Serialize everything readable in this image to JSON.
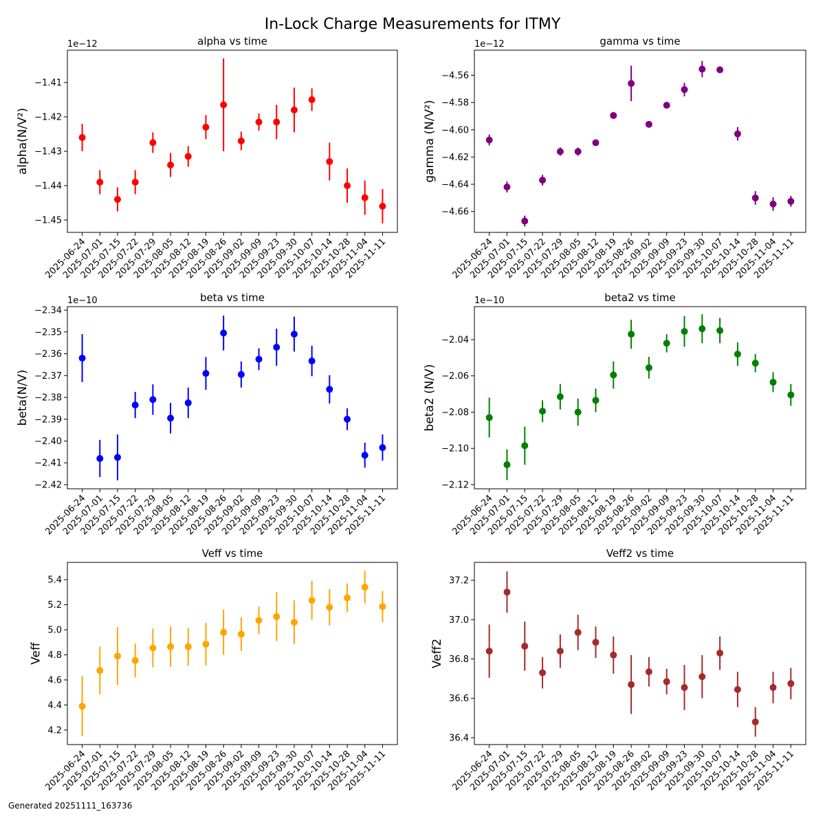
{
  "title": "In-Lock Charge Measurements for ITMY",
  "footer": "Generated 20251111_163736",
  "chart_data": [
    {
      "type": "errorbar",
      "title": "alpha vs time",
      "ylabel": "alpha(N/V²)",
      "offset_text": "1e−12",
      "color": "#ff0000",
      "categories": [
        "2025-06-24",
        "2025-07-01",
        "2025-07-15",
        "2025-07-22",
        "2025-07-29",
        "2025-08-05",
        "2025-08-12",
        "2025-08-19",
        "2025-08-26",
        "2025-09-02",
        "2025-09-09",
        "2025-09-23",
        "2025-09-30",
        "2025-10-07",
        "2025-10-14",
        "2025-10-28",
        "2025-11-04",
        "2025-11-11"
      ],
      "values": [
        -1.426,
        -1.439,
        -1.444,
        -1.439,
        -1.4275,
        -1.434,
        -1.4315,
        -1.423,
        -1.4165,
        -1.427,
        -1.4215,
        -1.4215,
        -1.418,
        -1.415,
        -1.433,
        -1.44,
        -1.4435,
        -1.446
      ],
      "errors": [
        0.004,
        0.0035,
        0.0035,
        0.0035,
        0.003,
        0.0035,
        0.003,
        0.0035,
        0.0135,
        0.0027,
        0.0025,
        0.005,
        0.0065,
        0.0033,
        0.0055,
        0.005,
        0.005,
        0.005
      ],
      "ylim": [
        -1.4536,
        -1.4006
      ],
      "yticks": [
        {
          "value": -1.45,
          "label": "−1.45"
        },
        {
          "value": -1.44,
          "label": "−1.44"
        },
        {
          "value": -1.43,
          "label": "−1.43"
        },
        {
          "value": -1.42,
          "label": "−1.42"
        },
        {
          "value": -1.41,
          "label": "−1.41"
        }
      ]
    },
    {
      "type": "errorbar",
      "title": "gamma vs time",
      "ylabel": "gamma (N/V²)",
      "offset_text": "1e−12",
      "color": "#800080",
      "categories": [
        "2025-06-24",
        "2025-07-01",
        "2025-07-15",
        "2025-07-22",
        "2025-07-29",
        "2025-08-05",
        "2025-08-12",
        "2025-08-19",
        "2025-08-26",
        "2025-09-02",
        "2025-09-09",
        "2025-09-23",
        "2025-09-30",
        "2025-10-07",
        "2025-10-14",
        "2025-10-28",
        "2025-11-04",
        "2025-11-11"
      ],
      "values": [
        -4.6075,
        -4.642,
        -4.667,
        -4.637,
        -4.616,
        -4.616,
        -4.6095,
        -4.5895,
        -4.566,
        -4.596,
        -4.582,
        -4.5705,
        -4.5555,
        -4.556,
        -4.603,
        -4.65,
        -4.6545,
        -4.6525
      ],
      "errors": [
        0.004,
        0.004,
        0.004,
        0.004,
        0.003,
        0.003,
        0.002,
        0.002,
        0.013,
        0.002,
        0.002,
        0.005,
        0.006,
        0.002,
        0.005,
        0.005,
        0.005,
        0.004
      ],
      "ylim": [
        -4.6753,
        -4.5416
      ],
      "yticks": [
        {
          "value": -4.66,
          "label": "−4.66"
        },
        {
          "value": -4.64,
          "label": "−4.64"
        },
        {
          "value": -4.62,
          "label": "−4.62"
        },
        {
          "value": -4.6,
          "label": "−4.60"
        },
        {
          "value": -4.58,
          "label": "−4.58"
        },
        {
          "value": -4.56,
          "label": "−4.56"
        }
      ]
    },
    {
      "type": "errorbar",
      "title": "beta vs time",
      "ylabel": "beta(N/V)",
      "offset_text": "1e−10",
      "color": "#0000ff",
      "categories": [
        "2025-06-24",
        "2025-07-01",
        "2025-07-15",
        "2025-07-22",
        "2025-07-29",
        "2025-08-05",
        "2025-08-12",
        "2025-08-19",
        "2025-08-26",
        "2025-09-02",
        "2025-09-09",
        "2025-09-23",
        "2025-09-30",
        "2025-10-07",
        "2025-10-14",
        "2025-10-28",
        "2025-11-04",
        "2025-11-11"
      ],
      "values": [
        -2.362,
        -2.408,
        -2.4075,
        -2.3835,
        -2.381,
        -2.3895,
        -2.3825,
        -2.369,
        -2.3505,
        -2.3695,
        -2.3625,
        -2.357,
        -2.351,
        -2.3633,
        -2.3763,
        -2.39,
        -2.4065,
        -2.403
      ],
      "errors": [
        0.011,
        0.0085,
        0.0105,
        0.006,
        0.007,
        0.007,
        0.007,
        0.0075,
        0.008,
        0.006,
        0.005,
        0.0085,
        0.008,
        0.007,
        0.0065,
        0.005,
        0.0057,
        0.006
      ],
      "ylim": [
        -2.4219,
        -2.3384
      ],
      "yticks": [
        {
          "value": -2.42,
          "label": "−2.42"
        },
        {
          "value": -2.41,
          "label": "−2.41"
        },
        {
          "value": -2.4,
          "label": "−2.40"
        },
        {
          "value": -2.39,
          "label": "−2.39"
        },
        {
          "value": -2.38,
          "label": "−2.38"
        },
        {
          "value": -2.37,
          "label": "−2.37"
        },
        {
          "value": -2.36,
          "label": "−2.36"
        },
        {
          "value": -2.35,
          "label": "−2.35"
        },
        {
          "value": -2.34,
          "label": "−2.34"
        }
      ]
    },
    {
      "type": "errorbar",
      "title": "beta2 vs time",
      "ylabel": "beta2 (N/V)",
      "offset_text": "1e−10",
      "color": "#008000",
      "categories": [
        "2025-06-24",
        "2025-07-01",
        "2025-07-15",
        "2025-07-22",
        "2025-07-29",
        "2025-08-05",
        "2025-08-12",
        "2025-08-19",
        "2025-08-26",
        "2025-09-02",
        "2025-09-09",
        "2025-09-23",
        "2025-09-30",
        "2025-10-07",
        "2025-10-14",
        "2025-10-28",
        "2025-11-04",
        "2025-11-11"
      ],
      "values": [
        -2.083,
        -2.109,
        -2.0985,
        -2.0795,
        -2.0715,
        -2.08,
        -2.0735,
        -2.0595,
        -2.037,
        -2.0555,
        -2.042,
        -2.0355,
        -2.034,
        -2.035,
        -2.048,
        -2.053,
        -2.0635,
        -2.0705
      ],
      "errors": [
        0.011,
        0.0085,
        0.0105,
        0.006,
        0.007,
        0.0075,
        0.0065,
        0.0075,
        0.008,
        0.006,
        0.005,
        0.0085,
        0.008,
        0.007,
        0.0065,
        0.005,
        0.0055,
        0.006
      ],
      "ylim": [
        -2.1223,
        -2.0218
      ],
      "yticks": [
        {
          "value": -2.12,
          "label": "−2.12"
        },
        {
          "value": -2.1,
          "label": "−2.10"
        },
        {
          "value": -2.08,
          "label": "−2.08"
        },
        {
          "value": -2.06,
          "label": "−2.06"
        },
        {
          "value": -2.04,
          "label": "−2.04"
        }
      ]
    },
    {
      "type": "errorbar",
      "title": "Veff vs time",
      "ylabel": "Veff",
      "color": "#ffa500",
      "categories": [
        "2025-06-24",
        "2025-07-01",
        "2025-07-15",
        "2025-07-22",
        "2025-07-29",
        "2025-08-05",
        "2025-08-12",
        "2025-08-19",
        "2025-08-26",
        "2025-09-02",
        "2025-09-09",
        "2025-09-23",
        "2025-09-30",
        "2025-10-07",
        "2025-10-14",
        "2025-10-28",
        "2025-11-04",
        "2025-11-11"
      ],
      "values": [
        4.39,
        4.675,
        4.79,
        4.755,
        4.855,
        4.865,
        4.865,
        4.885,
        4.98,
        4.965,
        5.075,
        5.105,
        5.06,
        5.235,
        5.18,
        5.255,
        5.34,
        5.185
      ],
      "errors": [
        0.24,
        0.19,
        0.23,
        0.135,
        0.155,
        0.16,
        0.15,
        0.17,
        0.18,
        0.135,
        0.11,
        0.195,
        0.175,
        0.155,
        0.145,
        0.115,
        0.13,
        0.125
      ],
      "ylim": [
        4.084,
        5.538
      ],
      "yticks": [
        {
          "value": 4.2,
          "label": "4.2"
        },
        {
          "value": 4.4,
          "label": "4.4"
        },
        {
          "value": 4.6,
          "label": "4.6"
        },
        {
          "value": 4.8,
          "label": "4.8"
        },
        {
          "value": 5,
          "label": "5.0"
        },
        {
          "value": 5.2,
          "label": "5.2"
        },
        {
          "value": 5.4,
          "label": "5.4"
        }
      ]
    },
    {
      "type": "errorbar",
      "title": "Veff2 vs time",
      "ylabel": "Veff2",
      "color": "#a52a2a",
      "categories": [
        "2025-06-24",
        "2025-07-01",
        "2025-07-15",
        "2025-07-22",
        "2025-07-29",
        "2025-08-05",
        "2025-08-12",
        "2025-08-19",
        "2025-08-26",
        "2025-09-02",
        "2025-09-09",
        "2025-09-23",
        "2025-09-30",
        "2025-10-07",
        "2025-10-14",
        "2025-10-28",
        "2025-11-04",
        "2025-11-11"
      ],
      "values": [
        36.84,
        37.14,
        36.865,
        36.73,
        36.84,
        36.935,
        36.885,
        36.82,
        36.67,
        36.735,
        36.685,
        36.655,
        36.71,
        36.83,
        36.645,
        36.48,
        36.655,
        36.675
      ],
      "errors": [
        0.135,
        0.105,
        0.125,
        0.08,
        0.085,
        0.09,
        0.08,
        0.095,
        0.15,
        0.075,
        0.065,
        0.115,
        0.11,
        0.085,
        0.09,
        0.075,
        0.08,
        0.08
      ],
      "ylim": [
        36.365,
        37.291
      ],
      "yticks": [
        {
          "value": 36.4,
          "label": "36.4"
        },
        {
          "value": 36.6,
          "label": "36.6"
        },
        {
          "value": 36.8,
          "label": "36.8"
        },
        {
          "value": 37,
          "label": "37.0"
        },
        {
          "value": 37.2,
          "label": "37.2"
        }
      ]
    }
  ]
}
